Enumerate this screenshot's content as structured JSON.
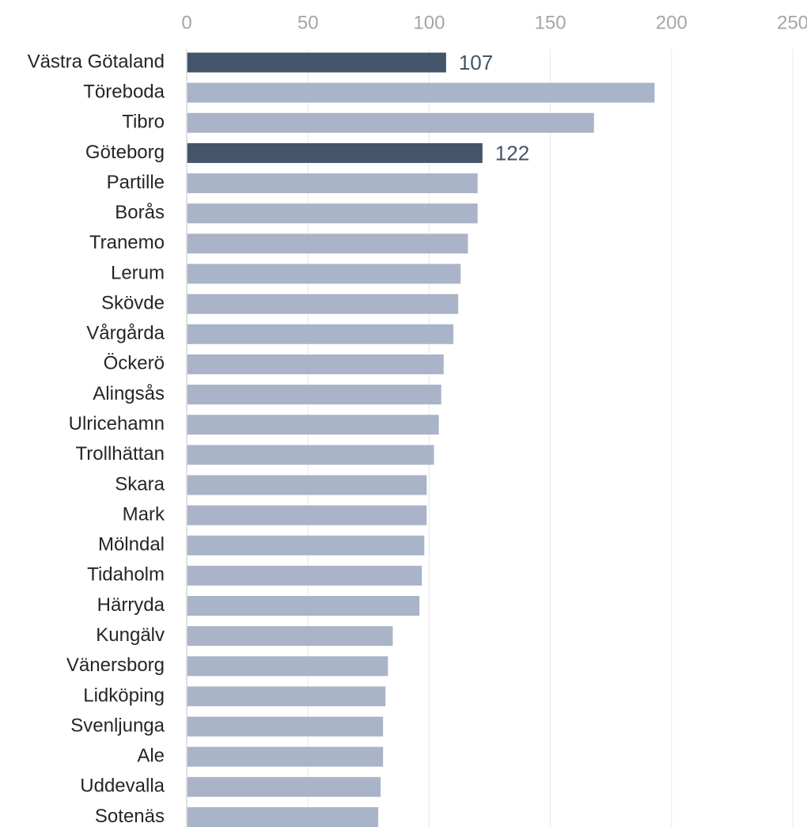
{
  "chart_data": {
    "type": "bar",
    "orientation": "horizontal",
    "title": "",
    "xlabel": "",
    "ylabel": "",
    "xlim": [
      0,
      250
    ],
    "x_ticks": [
      "0",
      "50",
      "100",
      "150",
      "200",
      "250"
    ],
    "x_axis_position": "top",
    "grid": true,
    "legend": "none",
    "categories": [
      "Västra Götaland",
      "Töreboda",
      "Tibro",
      "Göteborg",
      "Partille",
      "Borås",
      "Tranemo",
      "Lerum",
      "Skövde",
      "Vårgårda",
      "Öckerö",
      "Alingsås",
      "Ulricehamn",
      "Trollhättan",
      "Skara",
      "Mark",
      "Mölndal",
      "Tidaholm",
      "Härryda",
      "Kungälv",
      "Vänersborg",
      "Lidköping",
      "Svenljunga",
      "Ale",
      "Uddevalla",
      "Sotenäs"
    ],
    "values": [
      107,
      193,
      168,
      122,
      120,
      120,
      116,
      113,
      112,
      110,
      106,
      105,
      104,
      102,
      99,
      99,
      98,
      97,
      96,
      85,
      83,
      82,
      81,
      81,
      80,
      79
    ],
    "highlighted": [
      "Västra Götaland",
      "Göteborg"
    ],
    "data_labels": [
      {
        "category": "Västra Götaland",
        "text": "107"
      },
      {
        "category": "Göteborg",
        "text": "122"
      }
    ],
    "colors": {
      "bar": "#aab4c8",
      "highlight_bar": "#44546a",
      "label_highlight": "#44546a",
      "gridline": "#e8e8e8",
      "axis_line": "#d9d9d9",
      "tick_text": "#a6a6a6",
      "category_text": "#262626"
    }
  }
}
